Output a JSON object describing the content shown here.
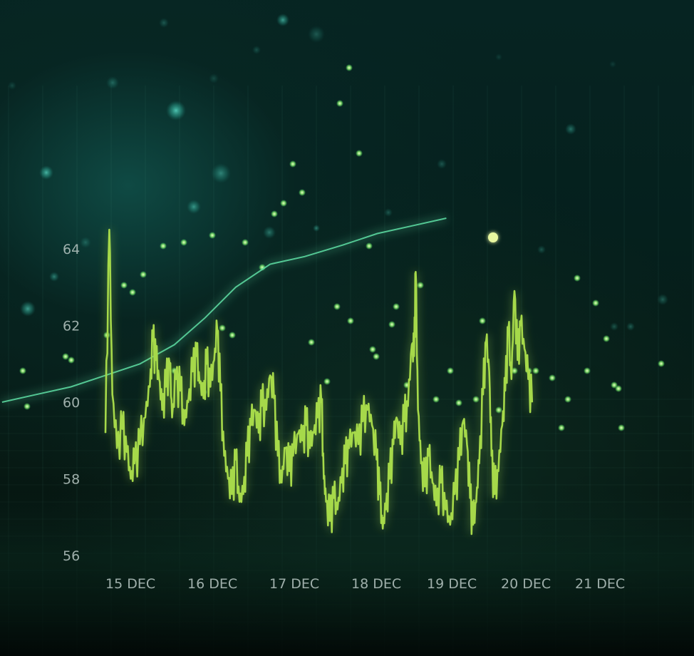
{
  "chart_data": {
    "type": "line",
    "title": "",
    "xlabel": "",
    "ylabel": "",
    "x_categories": [
      "15 DEC",
      "16 DEC",
      "17 DEC",
      "18 DEC",
      "19 DEC",
      "20 DEC",
      "21 DEC"
    ],
    "y_ticks": [
      56,
      58,
      60,
      62,
      64
    ],
    "ylim": [
      55.5,
      65
    ],
    "grid": true,
    "legend": "none",
    "colors": {
      "price_line": "#a6d94a",
      "trend_line": "#5fe0a6",
      "spikes": "#7dff8c",
      "axis_text": "#b9c8c4",
      "background": "#05201d"
    },
    "series": [
      {
        "values": [
          [
            0.0,
            59.2
          ],
          [
            0.05,
            64.5
          ],
          [
            0.09,
            60.2
          ],
          [
            0.15,
            58.8
          ],
          [
            0.22,
            59.3
          ],
          [
            0.28,
            58.7
          ],
          [
            0.33,
            58.0
          ],
          [
            0.38,
            58.4
          ],
          [
            0.45,
            58.9
          ],
          [
            0.52,
            59.6
          ],
          [
            0.58,
            60.4
          ],
          [
            0.62,
            61.6
          ],
          [
            0.66,
            61.1
          ],
          [
            0.7,
            60.6
          ],
          [
            0.74,
            59.8
          ],
          [
            0.79,
            60.4
          ],
          [
            0.84,
            61.0
          ],
          [
            0.87,
            59.6
          ],
          [
            0.92,
            60.6
          ],
          [
            0.98,
            60.3
          ],
          [
            1.03,
            59.4
          ],
          [
            1.08,
            60.0
          ],
          [
            1.14,
            60.8
          ],
          [
            1.19,
            61.2
          ],
          [
            1.23,
            60.5
          ],
          [
            1.28,
            60.1
          ],
          [
            1.32,
            61.0
          ],
          [
            1.37,
            60.4
          ],
          [
            1.42,
            61.1
          ],
          [
            1.46,
            61.9
          ],
          [
            1.5,
            60.3
          ],
          [
            1.55,
            58.6
          ],
          [
            1.6,
            58.0
          ],
          [
            1.65,
            57.6
          ],
          [
            1.7,
            58.5
          ],
          [
            1.75,
            57.4
          ],
          [
            1.8,
            57.6
          ],
          [
            1.85,
            58.6
          ],
          [
            1.9,
            59.4
          ],
          [
            1.95,
            59.8
          ],
          [
            2.0,
            59.2
          ],
          [
            2.04,
            59.9
          ],
          [
            2.1,
            59.8
          ],
          [
            2.15,
            60.7
          ],
          [
            2.2,
            60.1
          ],
          [
            2.25,
            58.6
          ],
          [
            2.3,
            57.9
          ],
          [
            2.35,
            58.8
          ],
          [
            2.4,
            58.2
          ],
          [
            2.45,
            58.6
          ],
          [
            2.52,
            59.2
          ],
          [
            2.57,
            59.0
          ],
          [
            2.62,
            59.4
          ],
          [
            2.67,
            58.8
          ],
          [
            2.72,
            59.2
          ],
          [
            2.77,
            59.6
          ],
          [
            2.82,
            60.0
          ],
          [
            2.85,
            58.0
          ],
          [
            2.88,
            57.4
          ],
          [
            2.93,
            56.9
          ],
          [
            2.98,
            57.5
          ],
          [
            3.03,
            57.2
          ],
          [
            3.08,
            57.9
          ],
          [
            3.13,
            58.4
          ],
          [
            3.18,
            58.8
          ],
          [
            3.24,
            59.2
          ],
          [
            3.3,
            58.9
          ],
          [
            3.36,
            59.5
          ],
          [
            3.42,
            59.8
          ],
          [
            3.48,
            59.4
          ],
          [
            3.54,
            58.5
          ],
          [
            3.58,
            57.6
          ],
          [
            3.62,
            56.7
          ],
          [
            3.66,
            57.2
          ],
          [
            3.71,
            58.0
          ],
          [
            3.76,
            58.9
          ],
          [
            3.8,
            59.6
          ],
          [
            3.85,
            58.9
          ],
          [
            3.9,
            59.5
          ],
          [
            3.95,
            59.9
          ],
          [
            4.0,
            61.5
          ],
          [
            4.03,
            61.2
          ],
          [
            4.05,
            63.4
          ],
          [
            4.08,
            59.8
          ],
          [
            4.12,
            58.4
          ],
          [
            4.17,
            57.8
          ],
          [
            4.22,
            58.6
          ],
          [
            4.27,
            57.9
          ],
          [
            4.32,
            57.3
          ],
          [
            4.38,
            57.9
          ],
          [
            4.44,
            57.2
          ],
          [
            4.5,
            56.8
          ],
          [
            4.56,
            57.6
          ],
          [
            4.62,
            58.5
          ],
          [
            4.67,
            59.5
          ],
          [
            4.72,
            58.9
          ],
          [
            4.76,
            57.5
          ],
          [
            4.8,
            56.8
          ],
          [
            4.84,
            57.4
          ],
          [
            4.88,
            58.4
          ],
          [
            4.93,
            60.2
          ],
          [
            4.97,
            61.6
          ],
          [
            5.01,
            60.8
          ],
          [
            5.04,
            58.6
          ],
          [
            5.08,
            57.6
          ],
          [
            5.13,
            58.2
          ],
          [
            5.18,
            59.4
          ],
          [
            5.22,
            60.3
          ],
          [
            5.26,
            61.9
          ],
          [
            5.3,
            60.6
          ],
          [
            5.34,
            62.9
          ],
          [
            5.38,
            61.1
          ],
          [
            5.42,
            62.0
          ],
          [
            5.47,
            61.4
          ],
          [
            5.52,
            60.6
          ],
          [
            5.57,
            60.0
          ]
        ]
      },
      {
        "values": [
          [
            -1.35,
            60.0
          ],
          [
            -0.9,
            60.2
          ],
          [
            -0.45,
            60.4
          ],
          [
            0.0,
            60.7
          ],
          [
            0.45,
            61.0
          ],
          [
            0.9,
            61.5
          ],
          [
            1.3,
            62.2
          ],
          [
            1.7,
            63.0
          ],
          [
            2.15,
            63.6
          ],
          [
            2.6,
            63.8
          ],
          [
            3.1,
            64.1
          ],
          [
            3.55,
            64.4
          ],
          [
            4.0,
            64.6
          ],
          [
            4.45,
            64.8
          ]
        ]
      }
    ]
  }
}
